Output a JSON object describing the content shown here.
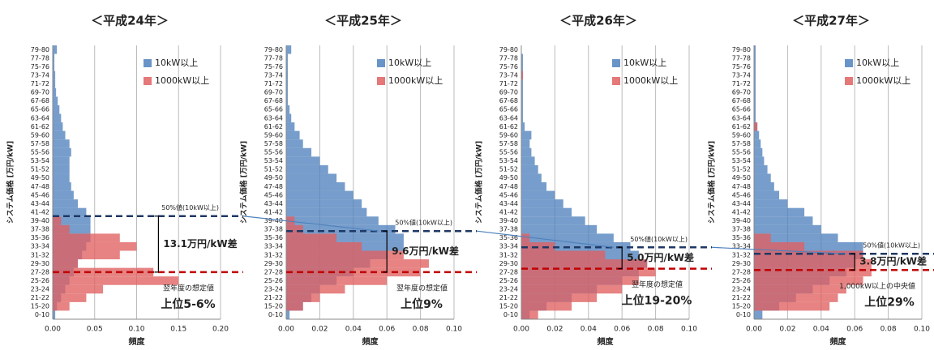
{
  "chart_data": [
    {
      "type": "bar",
      "orientation": "horizontal",
      "title": "＜平成24年＞",
      "xlabel": "頻度",
      "ylabel": "システム価格 [万円/kW]",
      "categories": [
        "0-10",
        "15-20",
        "21-22",
        "23-24",
        "25-26",
        "27-28",
        "29-30",
        "31-32",
        "33-34",
        "35-36",
        "37-38",
        "39-40",
        "41-42",
        "43-44",
        "45-46",
        "47-48",
        "49-50",
        "51-52",
        "53-54",
        "55-56",
        "57-58",
        "59-60",
        "61-62",
        "63-64",
        "65-66",
        "67-68",
        "69-70",
        "71-72",
        "73-74",
        "75-76",
        "77-78",
        "79-80"
      ],
      "series": [
        {
          "name": "10kW以上",
          "color": "#4f81bd",
          "values": [
            0.003,
            0.005,
            0.01,
            0.015,
            0.02,
            0.025,
            0.03,
            0.035,
            0.04,
            0.045,
            0.045,
            0.045,
            0.04,
            0.03,
            0.025,
            0.022,
            0.02,
            0.02,
            0.02,
            0.022,
            0.02,
            0.015,
            0.012,
            0.01,
            0.008,
            0.006,
            0.004,
            0.003,
            0.003,
            0.002,
            0.002,
            0.005
          ]
        },
        {
          "name": "1000kW以上",
          "color": "#e06060",
          "values": [
            0,
            0.02,
            0.04,
            0.06,
            0.15,
            0.12,
            0.03,
            0.08,
            0.1,
            0.08,
            0.02,
            0.01,
            0,
            0,
            0,
            0,
            0,
            0,
            0,
            0,
            0,
            0,
            0,
            0,
            0,
            0,
            0,
            0,
            0,
            0,
            0,
            0
          ]
        }
      ],
      "xlim": [
        0,
        0.2
      ],
      "xticks": [
        {
          "value": 0,
          "label": "0.00"
        },
        {
          "value": 0.05,
          "label": "0.05"
        },
        {
          "value": 0.1,
          "label": "0.10"
        },
        {
          "value": 0.15,
          "label": "0.15"
        },
        {
          "value": 0.2,
          "label": "0.20"
        }
      ],
      "grid": true,
      "reference_lines": [
        {
          "label": "50%値(10kW以上)",
          "value": 41.1,
          "color": "#1f3864"
        },
        {
          "label": "翌年度の想定値",
          "value": 28.0,
          "color": "#c00000"
        }
      ],
      "difference_label": "13.1万円/kW差",
      "rank_label": "上位5-6%"
    },
    {
      "type": "bar",
      "orientation": "horizontal",
      "title": "＜平成25年＞",
      "xlabel": "頻度",
      "ylabel": "システム価格 [万円/kW]",
      "categories": [
        "0-10",
        "15-20",
        "21-22",
        "23-24",
        "25-26",
        "27-28",
        "29-30",
        "31-32",
        "33-34",
        "35-36",
        "37-38",
        "39-40",
        "41-42",
        "43-44",
        "45-46",
        "47-48",
        "49-50",
        "51-52",
        "53-54",
        "55-56",
        "57-58",
        "59-60",
        "61-62",
        "63-64",
        "65-66",
        "67-68",
        "69-70",
        "71-72",
        "73-74",
        "75-76",
        "77-78",
        "79-80"
      ],
      "series": [
        {
          "name": "10kW以上",
          "color": "#4f81bd",
          "values": [
            0.002,
            0.01,
            0.015,
            0.02,
            0.03,
            0.04,
            0.05,
            0.06,
            0.07,
            0.07,
            0.065,
            0.055,
            0.048,
            0.045,
            0.04,
            0.035,
            0.03,
            0.025,
            0.02,
            0.015,
            0.01,
            0.008,
            0.005,
            0.003,
            0.002,
            0.001,
            0.001,
            0.001,
            0.001,
            0.001,
            0.001,
            0.003
          ]
        },
        {
          "name": "1000kW以上",
          "color": "#e06060",
          "values": [
            0,
            0.01,
            0.02,
            0.035,
            0.06,
            0.08,
            0.085,
            0.07,
            0.045,
            0.03,
            0.01,
            0.005,
            0,
            0,
            0,
            0,
            0,
            0,
            0,
            0,
            0,
            0,
            0,
            0,
            0,
            0,
            0,
            0,
            0,
            0,
            0,
            0
          ]
        }
      ],
      "xlim": [
        0,
        0.1
      ],
      "xticks": [
        {
          "value": 0,
          "label": "0.00"
        },
        {
          "value": 0.02,
          "label": "0.02"
        },
        {
          "value": 0.04,
          "label": "0.04"
        },
        {
          "value": 0.06,
          "label": "0.06"
        },
        {
          "value": 0.08,
          "label": "0.08"
        },
        {
          "value": 0.1,
          "label": "0.10"
        }
      ],
      "grid": true,
      "reference_lines": [
        {
          "label": "50%値(10kW以上)",
          "value": 37.6,
          "color": "#1f3864"
        },
        {
          "label": "翌年度の想定値",
          "value": 28.0,
          "color": "#c00000"
        }
      ],
      "difference_label": "9.6万円/kW差",
      "rank_label": "上位9%"
    },
    {
      "type": "bar",
      "orientation": "horizontal",
      "title": "＜平成26年＞",
      "xlabel": "頻度",
      "ylabel": "システム価格 [万円/kW]",
      "categories": [
        "0-10",
        "15-20",
        "21-22",
        "23-24",
        "25-26",
        "27-28",
        "29-30",
        "31-32",
        "33-34",
        "35-36",
        "37-38",
        "39-40",
        "41-42",
        "43-44",
        "45-46",
        "47-48",
        "49-50",
        "51-52",
        "53-54",
        "55-56",
        "57-58",
        "59-60",
        "61-62",
        "63-64",
        "65-66",
        "67-68",
        "69-70",
        "71-72",
        "73-74",
        "75-76",
        "77-78",
        "79-80"
      ],
      "series": [
        {
          "name": "10kW以上",
          "color": "#4f81bd",
          "values": [
            0.005,
            0.015,
            0.03,
            0.045,
            0.06,
            0.07,
            0.075,
            0.07,
            0.065,
            0.055,
            0.045,
            0.038,
            0.03,
            0.025,
            0.02,
            0.015,
            0.012,
            0.01,
            0.008,
            0.006,
            0.005,
            0.006,
            0.002,
            0.001,
            0.001,
            0.001,
            0.001,
            0.001,
            0.001,
            0.001,
            0.001,
            0
          ]
        },
        {
          "name": "1000kW以上",
          "color": "#e06060",
          "values": [
            0.01,
            0.03,
            0.045,
            0.06,
            0.07,
            0.08,
            0.075,
            0.05,
            0.02,
            0.005,
            0,
            0,
            0,
            0,
            0,
            0,
            0,
            0,
            0,
            0,
            0,
            0,
            0,
            0,
            0,
            0,
            0,
            0,
            0.001,
            0,
            0,
            0
          ]
        }
      ],
      "xlim": [
        0,
        0.1
      ],
      "xticks": [
        {
          "value": 0,
          "label": "0.00"
        },
        {
          "value": 0.02,
          "label": "0.02"
        },
        {
          "value": 0.04,
          "label": "0.04"
        },
        {
          "value": 0.06,
          "label": "0.06"
        },
        {
          "value": 0.08,
          "label": "0.08"
        },
        {
          "value": 0.1,
          "label": "0.10"
        }
      ],
      "grid": true,
      "reference_lines": [
        {
          "label": "50%値(10kW以上)",
          "value": 33.8,
          "color": "#1f3864"
        },
        {
          "label": "翌年度の想定値",
          "value": 28.8,
          "color": "#c00000"
        }
      ],
      "difference_label": "5.0万円/kW差",
      "rank_label": "上位19-20%"
    },
    {
      "type": "bar",
      "orientation": "horizontal",
      "title": "＜平成27年＞",
      "xlabel": "頻度",
      "ylabel": "システム価格 [万円/kW]",
      "categories": [
        "0-10",
        "15-20",
        "21-22",
        "23-24",
        "25-26",
        "27-28",
        "29-30",
        "31-32",
        "33-34",
        "35-36",
        "37-38",
        "39-40",
        "41-42",
        "43-44",
        "45-46",
        "47-48",
        "49-50",
        "51-52",
        "53-54",
        "55-56",
        "57-58",
        "59-60",
        "61-62",
        "63-64",
        "65-66",
        "67-68",
        "69-70",
        "71-72",
        "73-74",
        "75-76",
        "77-78",
        "79-80"
      ],
      "series": [
        {
          "name": "10kW以上",
          "color": "#4f81bd",
          "values": [
            0.005,
            0.015,
            0.025,
            0.035,
            0.045,
            0.055,
            0.06,
            0.065,
            0.065,
            0.05,
            0.04,
            0.035,
            0.03,
            0.02,
            0.015,
            0.012,
            0.01,
            0.008,
            0.006,
            0.005,
            0.004,
            0.003,
            0.002,
            0.001,
            0.001,
            0.001,
            0.001,
            0.001,
            0.001,
            0.001,
            0.001,
            0.001
          ]
        },
        {
          "name": "1000kW以上",
          "color": "#e06060",
          "values": [
            0,
            0.045,
            0.05,
            0.055,
            0.065,
            0.07,
            0.07,
            0.065,
            0.03,
            0.01,
            0,
            0,
            0,
            0,
            0,
            0,
            0,
            0,
            0,
            0,
            0,
            0,
            0.002,
            0,
            0,
            0,
            0,
            0,
            0,
            0,
            0,
            0
          ]
        }
      ],
      "xlim": [
        0,
        0.1
      ],
      "xticks": [
        {
          "value": 0,
          "label": "0.00"
        },
        {
          "value": 0.02,
          "label": "0.02"
        },
        {
          "value": 0.04,
          "label": "0.04"
        },
        {
          "value": 0.06,
          "label": "0.06"
        },
        {
          "value": 0.08,
          "label": "0.08"
        },
        {
          "value": 0.1,
          "label": "0.10"
        }
      ],
      "grid": true,
      "reference_lines": [
        {
          "label": "50%値(10kW以上)",
          "value": 32.3,
          "color": "#1f3864"
        },
        {
          "label": "1,000kW以上の中央値",
          "value": 28.5,
          "color": "#c00000"
        }
      ],
      "difference_label": "3.8万円/kW差",
      "rank_label": "上位29%"
    }
  ]
}
